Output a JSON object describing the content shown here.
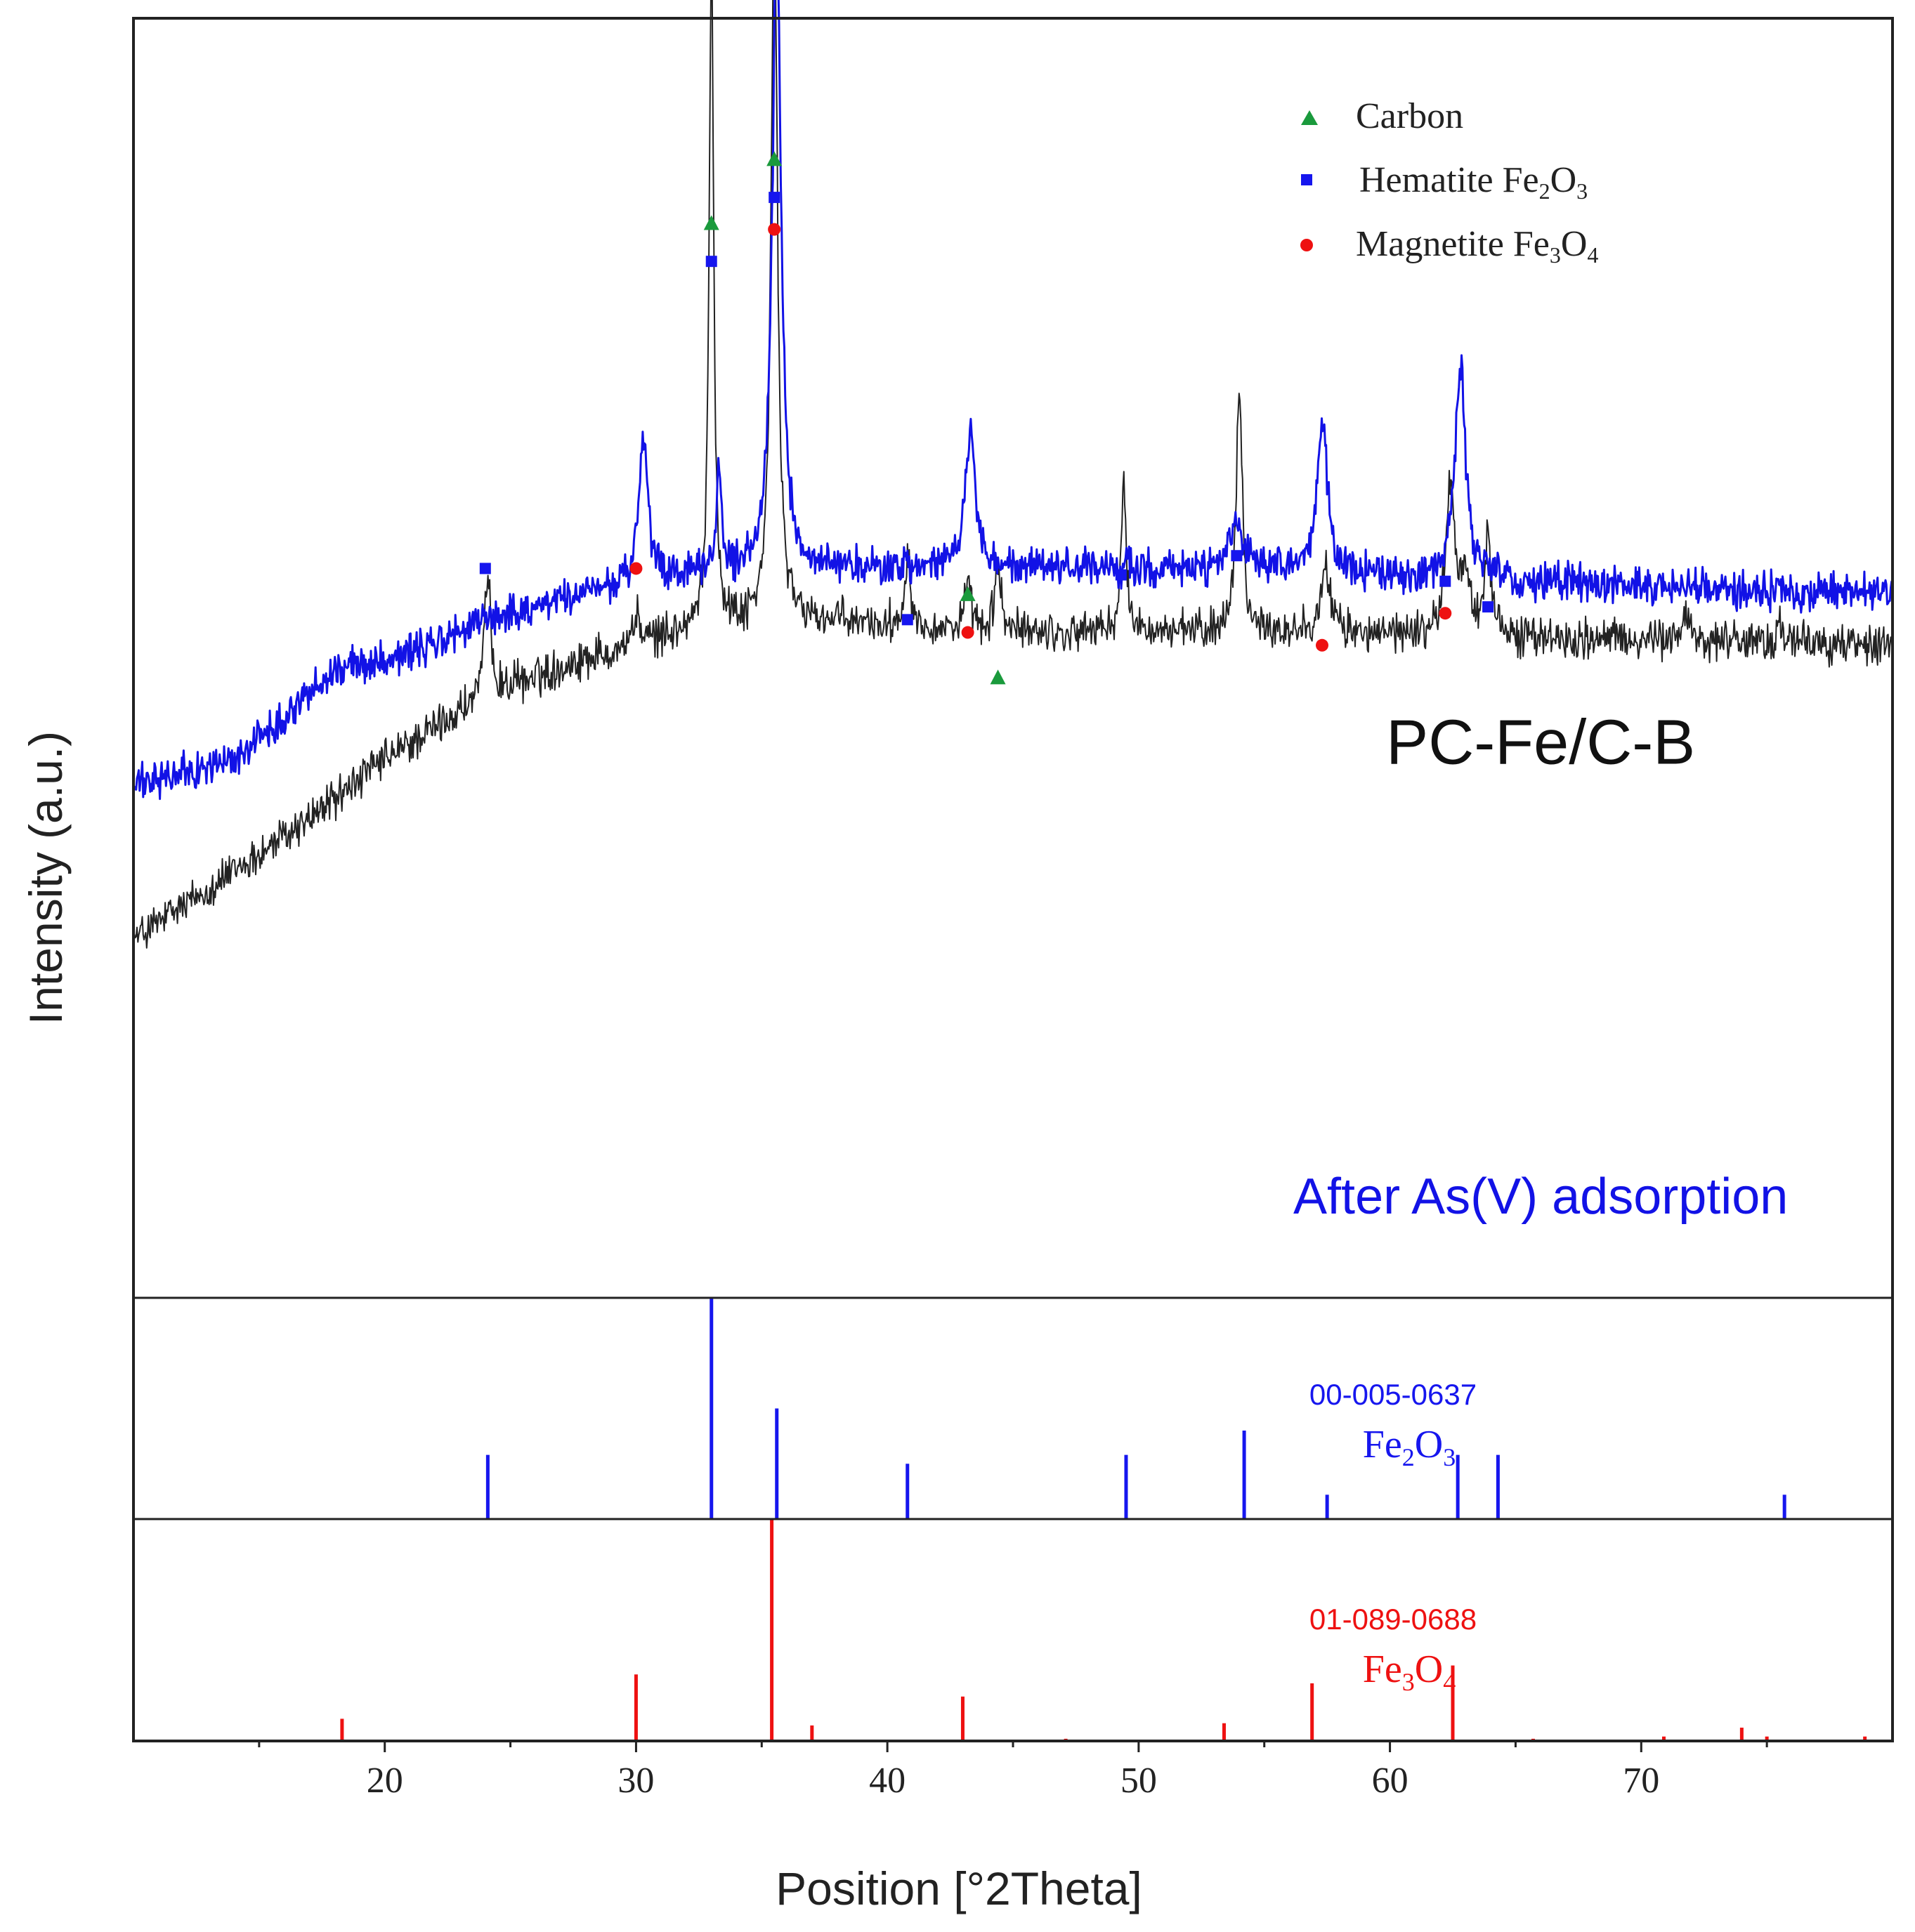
{
  "chart_data": {
    "type": "line",
    "xlabel": "Position [°2Theta]",
    "ylabel": "Intensity (a.u.)",
    "xlim": [
      10,
      80
    ],
    "ylim": [
      0,
      1
    ],
    "x_ticks": [
      20,
      30,
      40,
      50,
      60,
      70
    ],
    "grid": false,
    "legend_position": "top-right",
    "legend": [
      {
        "marker": "triangle",
        "name": "Carbon",
        "color": "#1a9a3c"
      },
      {
        "marker": "square",
        "name": "Hematite Fe",
        "sub1": "2",
        "mid": "O",
        "sub2": "3",
        "color": "#1616ee"
      },
      {
        "marker": "circle",
        "name": "Magnetite Fe",
        "sub1": "3",
        "mid": "O",
        "sub2": "4",
        "color": "#ee1111"
      }
    ],
    "series": [
      {
        "name": "PC-Fe/C-B",
        "color": "#222222",
        "baseline": [
          [
            10,
            0.28
          ],
          [
            16,
            0.36
          ],
          [
            20,
            0.42
          ],
          [
            24,
            0.47
          ],
          [
            28,
            0.5
          ],
          [
            32,
            0.52
          ],
          [
            36,
            0.53
          ],
          [
            45,
            0.52
          ],
          [
            55,
            0.52
          ],
          [
            80,
            0.51
          ]
        ],
        "peaks": [
          [
            24.1,
            0.09,
            0.3
          ],
          [
            30.0,
            0.02,
            0.4
          ],
          [
            33.0,
            0.53,
            0.22
          ],
          [
            35.5,
            0.56,
            0.3
          ],
          [
            40.8,
            0.06,
            0.25
          ],
          [
            43.2,
            0.03,
            0.3
          ],
          [
            44.4,
            0.05,
            0.3
          ],
          [
            49.4,
            0.11,
            0.25
          ],
          [
            54.0,
            0.19,
            0.3
          ],
          [
            57.4,
            0.05,
            0.5
          ],
          [
            62.4,
            0.12,
            0.4
          ],
          [
            63.0,
            0.05,
            0.4
          ],
          [
            63.9,
            0.08,
            0.3
          ],
          [
            71.8,
            0.02,
            0.4
          ],
          [
            75.5,
            0.01,
            0.4
          ]
        ],
        "noise": 0.02
      },
      {
        "name": "After As(V) adsorption",
        "color": "#1212e6",
        "baseline": [
          [
            10,
            0.4
          ],
          [
            14,
            0.42
          ],
          [
            18,
            0.49
          ],
          [
            22,
            0.51
          ],
          [
            24,
            0.53
          ],
          [
            26,
            0.54
          ],
          [
            30,
            0.56
          ],
          [
            36,
            0.57
          ],
          [
            50,
            0.57
          ],
          [
            65,
            0.56
          ],
          [
            80,
            0.55
          ]
        ],
        "peaks": [
          [
            30.3,
            0.11,
            0.4
          ],
          [
            33.3,
            0.08,
            0.25
          ],
          [
            35.6,
            0.51,
            0.4
          ],
          [
            43.3,
            0.11,
            0.45
          ],
          [
            53.9,
            0.04,
            0.6
          ],
          [
            57.3,
            0.12,
            0.5
          ],
          [
            62.8,
            0.17,
            0.5
          ]
        ],
        "noise": 0.018
      }
    ],
    "markers": [
      {
        "type": "square",
        "x": 24.0,
        "y": 0.57
      },
      {
        "type": "circle",
        "x": 30.0,
        "y": 0.57
      },
      {
        "type": "triangle",
        "x": 33.0,
        "y": 0.84
      },
      {
        "type": "square",
        "x": 33.0,
        "y": 0.81
      },
      {
        "type": "triangle",
        "x": 35.5,
        "y": 0.89
      },
      {
        "type": "square",
        "x": 35.5,
        "y": 0.86
      },
      {
        "type": "circle",
        "x": 35.5,
        "y": 0.835
      },
      {
        "type": "square",
        "x": 40.8,
        "y": 0.53
      },
      {
        "type": "triangle",
        "x": 43.2,
        "y": 0.55
      },
      {
        "type": "circle",
        "x": 43.2,
        "y": 0.52
      },
      {
        "type": "triangle",
        "x": 44.4,
        "y": 0.485
      },
      {
        "type": "square",
        "x": 49.3,
        "y": 0.565
      },
      {
        "type": "square",
        "x": 53.9,
        "y": 0.58
      },
      {
        "type": "circle",
        "x": 57.3,
        "y": 0.51
      },
      {
        "type": "square",
        "x": 62.2,
        "y": 0.56
      },
      {
        "type": "circle",
        "x": 62.2,
        "y": 0.535
      },
      {
        "type": "square",
        "x": 63.9,
        "y": 0.54
      }
    ],
    "annotations": [
      {
        "text": "PC-Fe/C-B",
        "x": 66,
        "y": 0.435,
        "color": "#111111"
      },
      {
        "text": "After As(V) adsorption",
        "x": 66,
        "y": 0.08,
        "color": "#1212e6"
      }
    ],
    "reference_panels": [
      {
        "code": "00-005-0637",
        "formula": "Fe",
        "sub1": "2",
        "mid": "O",
        "sub2": "3",
        "color": "#1616ee",
        "peaks": [
          [
            24.1,
            0.29
          ],
          [
            33.0,
            1.0
          ],
          [
            35.6,
            0.5
          ],
          [
            40.8,
            0.25
          ],
          [
            49.5,
            0.29
          ],
          [
            54.2,
            0.4
          ],
          [
            57.5,
            0.11
          ],
          [
            62.7,
            0.29
          ],
          [
            64.3,
            0.29
          ],
          [
            75.7,
            0.11
          ]
        ]
      },
      {
        "code": "01-089-0688",
        "formula": "Fe",
        "sub1": "3",
        "mid": "O",
        "sub2": "4",
        "color": "#ee1111",
        "peaks": [
          [
            18.3,
            0.1
          ],
          [
            30.0,
            0.3
          ],
          [
            35.4,
            1.0
          ],
          [
            37.0,
            0.07
          ],
          [
            43.0,
            0.2
          ],
          [
            47.1,
            0.01
          ],
          [
            53.4,
            0.08
          ],
          [
            56.9,
            0.26
          ],
          [
            62.5,
            0.34
          ],
          [
            65.7,
            0.01
          ],
          [
            70.9,
            0.02
          ],
          [
            74.0,
            0.06
          ],
          [
            75.0,
            0.02
          ],
          [
            78.9,
            0.02
          ]
        ]
      }
    ]
  }
}
